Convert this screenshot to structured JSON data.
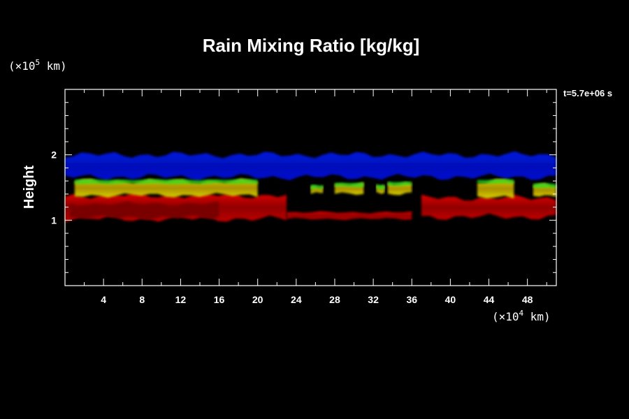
{
  "chart_data": {
    "type": "heatmap",
    "title": "Rain Mixing Ratio [kg/kg]",
    "ylabel": "Height",
    "y_unit": {
      "prefix": "(×10",
      "exp": "5",
      "suffix": " km)"
    },
    "x_unit": {
      "prefix": "(×10",
      "exp": "4",
      "suffix": " km)"
    },
    "time_label": "t=5.7e+06 s",
    "xlim": [
      0,
      51
    ],
    "ylim": [
      0,
      3
    ],
    "x_ticks": [
      4,
      8,
      12,
      16,
      20,
      24,
      28,
      32,
      36,
      40,
      44,
      48
    ],
    "y_ticks": [
      1,
      2
    ],
    "colors": {
      "background": "#000000",
      "blue": "#1020d8",
      "yellow": "#c8c000",
      "green": "#20e020",
      "red": "#e00000",
      "dark_red": "#900000"
    },
    "regions": [
      {
        "name": "upper band",
        "level": "blue",
        "x": [
          0,
          51
        ],
        "y": [
          1.66,
          2.0
        ]
      },
      {
        "name": "layer west",
        "level": "yellow",
        "x": [
          1,
          20
        ],
        "y": [
          1.38,
          1.6
        ]
      },
      {
        "name": "cell 26",
        "level": "yellow",
        "x": [
          25.5,
          26.8
        ],
        "y": [
          1.42,
          1.52
        ]
      },
      {
        "name": "cell 29",
        "level": "yellow",
        "x": [
          28,
          31
        ],
        "y": [
          1.4,
          1.55
        ]
      },
      {
        "name": "cell 32",
        "level": "yellow",
        "x": [
          32.3,
          33.2
        ],
        "y": [
          1.42,
          1.52
        ]
      },
      {
        "name": "cell 34",
        "level": "yellow",
        "x": [
          33.5,
          36
        ],
        "y": [
          1.4,
          1.57
        ]
      },
      {
        "name": "cell 45",
        "level": "yellow",
        "x": [
          42.8,
          46.6
        ],
        "y": [
          1.34,
          1.6
        ]
      },
      {
        "name": "cell 49",
        "level": "yellow",
        "x": [
          48.6,
          51
        ],
        "y": [
          1.38,
          1.54
        ]
      },
      {
        "name": "layer west",
        "level": "red",
        "x": [
          0,
          23
        ],
        "y": [
          1.02,
          1.38
        ]
      },
      {
        "name": "layer mid",
        "level": "red",
        "x": [
          23,
          36
        ],
        "y": [
          1.02,
          1.12
        ]
      },
      {
        "name": "patches east",
        "level": "red",
        "x": [
          37,
          51
        ],
        "y": [
          1.05,
          1.34
        ]
      },
      {
        "name": "core west",
        "level": "dark_red",
        "x": [
          0.5,
          16
        ],
        "y": [
          1.04,
          1.25
        ]
      }
    ]
  }
}
